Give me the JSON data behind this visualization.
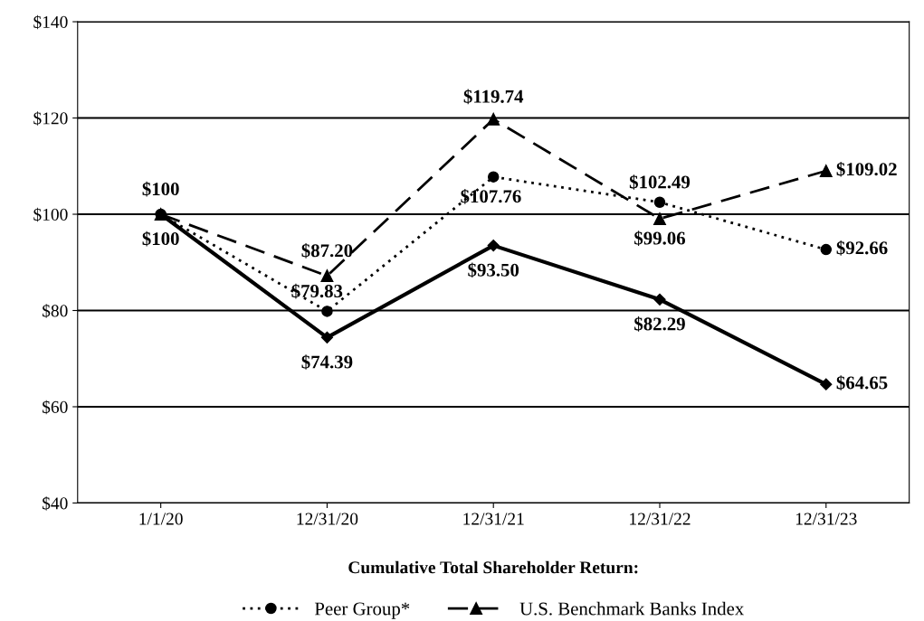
{
  "chart_data": {
    "type": "line",
    "xlabel": "Cumulative Total Shareholder Return:",
    "categories": [
      "1/1/20",
      "12/31/20",
      "12/31/21",
      "12/31/22",
      "12/31/23"
    ],
    "series": [
      {
        "color": "#000000",
        "marker": "diamond",
        "line_style": "solid",
        "values": [
          100,
          74.39,
          93.5,
          82.29,
          64.65
        ],
        "value_labels": [
          null,
          "$74.39",
          "$93.50",
          "$82.29",
          "$64.65"
        ]
      },
      {
        "name": "Peer Group*",
        "color": "#000000",
        "marker": "circle",
        "line_style": "dotted",
        "values": [
          100,
          79.83,
          107.76,
          102.49,
          92.66
        ],
        "value_labels": [
          "$100",
          "$79.83",
          "$107.76",
          "$102.49",
          "$92.66"
        ]
      },
      {
        "name": "U.S. Benchmark Banks Index",
        "color": "#000000",
        "marker": "triangle",
        "line_style": "dashed",
        "values": [
          100,
          87.2,
          119.74,
          99.06,
          109.02
        ],
        "value_labels": [
          "$100",
          "$87.20",
          "$119.74",
          "$99.06",
          "$109.02"
        ]
      }
    ],
    "ylim": [
      40,
      140
    ],
    "yticks": [
      {
        "value": 40,
        "label": "$40"
      },
      {
        "value": 60,
        "label": "$60"
      },
      {
        "value": 80,
        "label": "$80"
      },
      {
        "value": 100,
        "label": "$100"
      },
      {
        "value": 120,
        "label": "$120"
      },
      {
        "value": 140,
        "label": "$140"
      }
    ],
    "grid": "y",
    "legend": "bottom"
  }
}
